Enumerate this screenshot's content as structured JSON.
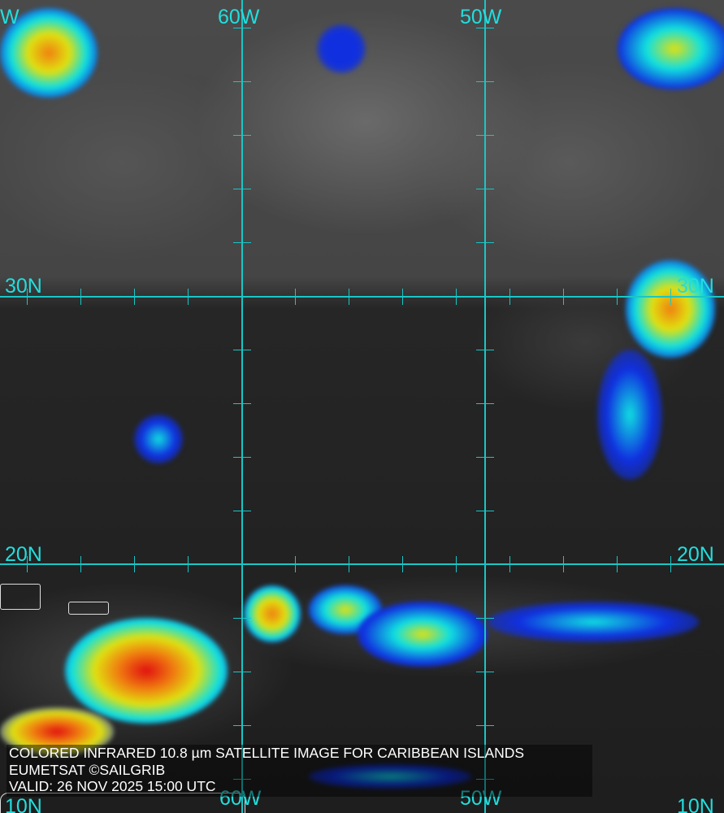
{
  "grid_labels": {
    "lon_top": [
      "60W",
      "50W"
    ],
    "lon_top_partial": "W",
    "lon_bottom": [
      "60W",
      "50W"
    ],
    "lat_left": [
      "30N",
      "20N",
      "10N"
    ],
    "lat_right": [
      "30N",
      "20N",
      "10N"
    ]
  },
  "caption": {
    "line1": "COLORED INFRARED 10.8 µm SATELLITE IMAGE FOR CARIBBEAN ISLANDS",
    "line2": "EUMETSAT ©SAILGRIB",
    "line3": "VALID:  26 NOV 2025 15:00 UTC"
  },
  "colors": {
    "grid": "#19c6c6",
    "caption_text": "#ffffff",
    "cold_cloud_scale": [
      "#1030e0",
      "#10e0e0",
      "#e0e010",
      "#f08010",
      "#e01010"
    ]
  }
}
